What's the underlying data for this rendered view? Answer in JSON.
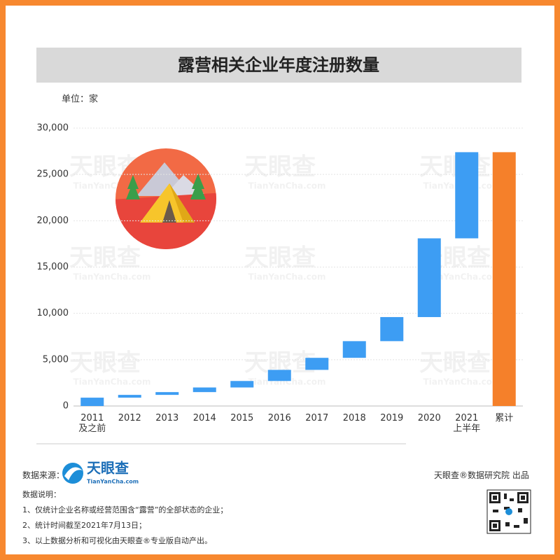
{
  "chart_data": {
    "type": "waterfall",
    "title": "露营相关企业年度注册数量",
    "unit_label": "单位：家",
    "categories": [
      "2011\n及之前",
      "2012",
      "2013",
      "2014",
      "2015",
      "2016",
      "2017",
      "2018",
      "2019",
      "2020",
      "2021\n上半年"
    ],
    "values": [
      900,
      300,
      300,
      500,
      700,
      1200,
      1300,
      1800,
      2600,
      8500,
      9300
    ],
    "color": "#3d9df3",
    "total": {
      "category": "累计",
      "value": 27400,
      "color": "#f5802a"
    },
    "ylim": [
      0,
      30000
    ],
    "yticks": [
      0,
      {
        "value": 5000,
        "label": "5,000"
      },
      {
        "value": 10000,
        "label": "10,000"
      },
      {
        "value": 15000,
        "label": "15,000"
      },
      {
        "value": 20000,
        "label": "20,000"
      },
      {
        "value": 25000,
        "label": "25,000"
      },
      {
        "value": 30000,
        "label": "30,000"
      }
    ],
    "grid": true
  },
  "watermark": {
    "name": "天眼查",
    "url": "TianYanCha.com"
  },
  "footer": {
    "source_label": "数据来源：",
    "logo_name": "天眼查",
    "logo_url": "TianYanCha.com",
    "producer": "天眼查®数据研究院 出品",
    "notes_title": "数据说明：",
    "notes": [
      "1、仅统计企业名称或经营范围含“露营”的全部状态的企业；",
      "2、统计时间截至2021年7月13日；",
      "3、以上数据分析和可视化由天眼查®专业版自动产出。"
    ]
  }
}
